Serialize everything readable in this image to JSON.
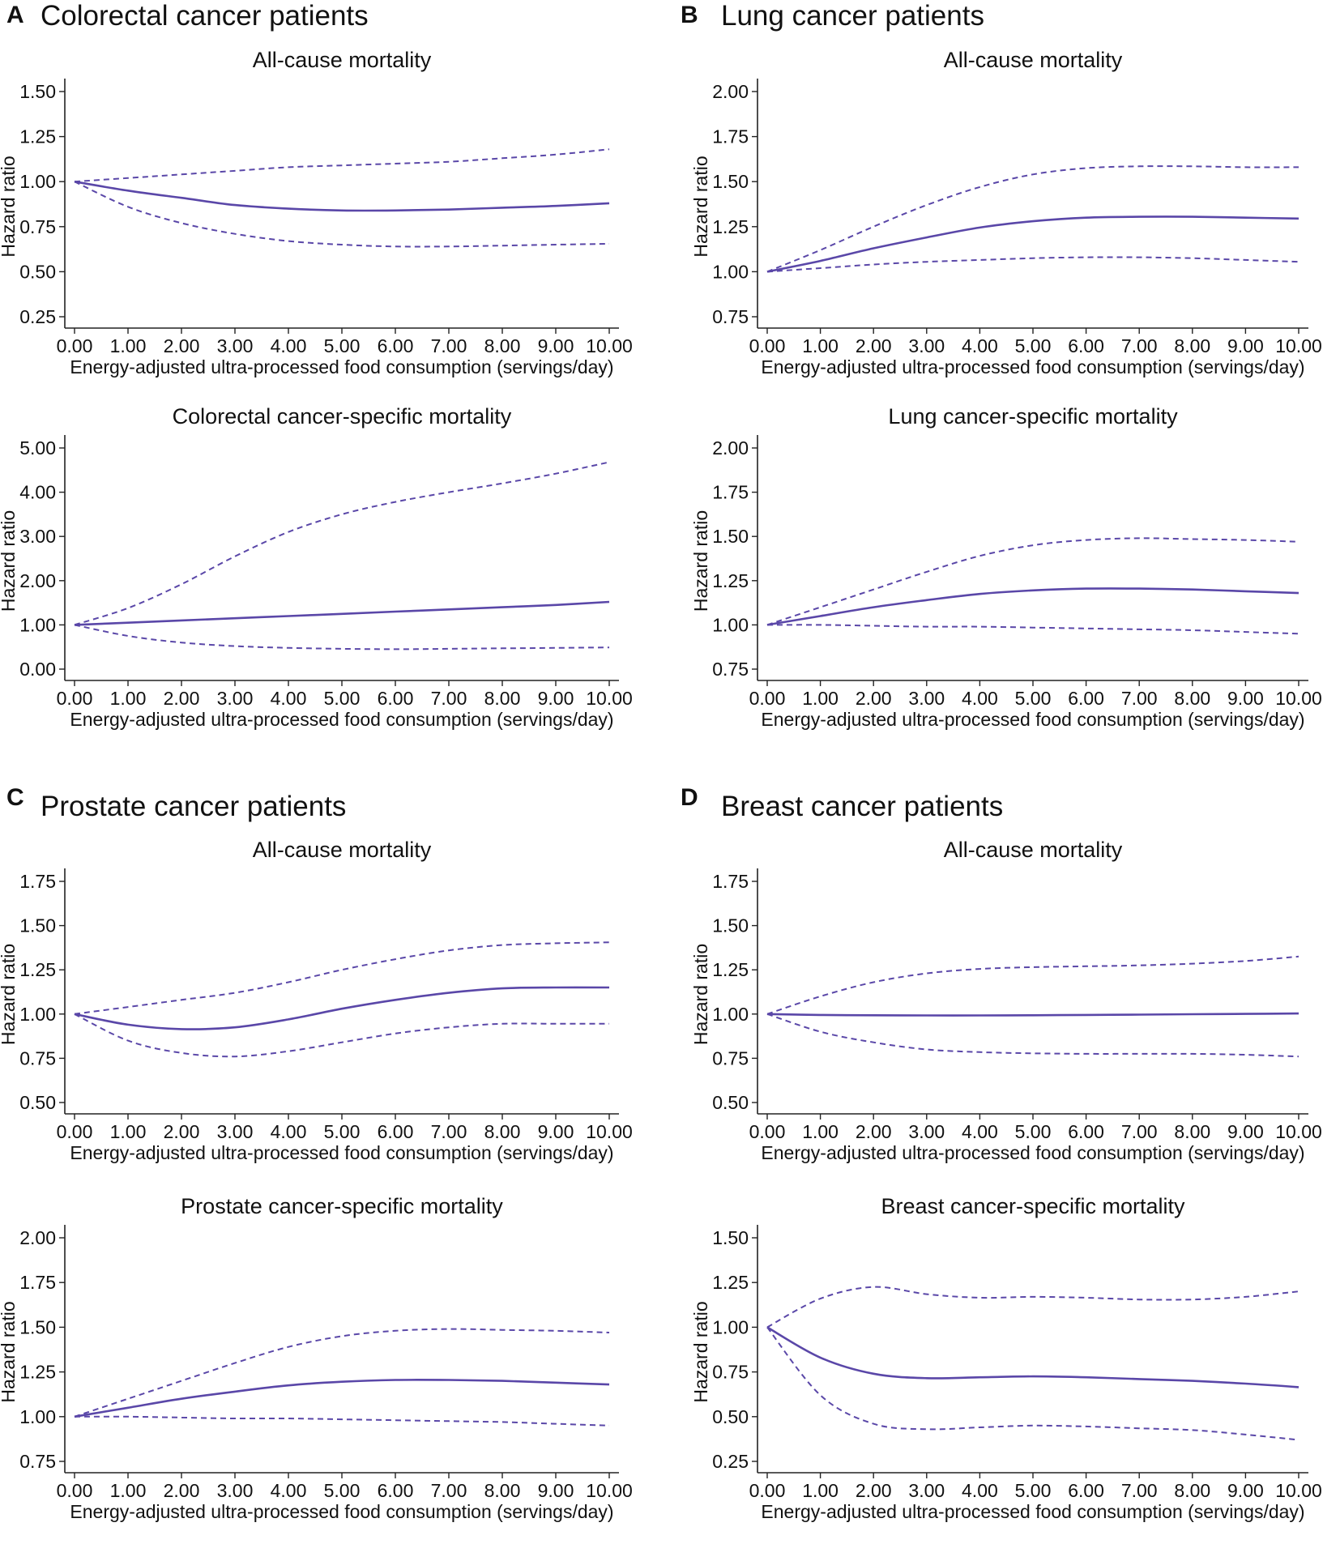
{
  "panels": [
    {
      "letter": "A",
      "title": "Colorectal cancer patients"
    },
    {
      "letter": "B",
      "title": "Lung cancer patients"
    },
    {
      "letter": "C",
      "title": "Prostate cancer patients"
    },
    {
      "letter": "D",
      "title": "Breast cancer patients"
    }
  ],
  "colors": {
    "line": "#5a47a8",
    "axis": "#222222"
  },
  "chart_data": [
    {
      "id": "A1",
      "panel": "A",
      "type": "line",
      "title": "All-cause mortality",
      "xlabel": "Energy-adjusted ultra-processed food consumption (servings/day)",
      "ylabel": "Hazard ratio",
      "xlim": [
        0,
        10
      ],
      "ylim": [
        0.25,
        1.5
      ],
      "xticks": [
        "0.00",
        "1.00",
        "2.00",
        "3.00",
        "4.00",
        "5.00",
        "6.00",
        "7.00",
        "8.00",
        "9.00",
        "10.00"
      ],
      "yticks": [
        "0.25",
        "0.50",
        "0.75",
        "1.00",
        "1.25",
        "1.50"
      ],
      "x": [
        0,
        1,
        2,
        3,
        4,
        5,
        6,
        7,
        8,
        9,
        10
      ],
      "series": [
        {
          "name": "Hazard ratio",
          "style": "solid",
          "values": [
            1.0,
            0.95,
            0.91,
            0.87,
            0.85,
            0.84,
            0.84,
            0.845,
            0.855,
            0.865,
            0.88
          ]
        },
        {
          "name": "Upper 95% CI",
          "style": "dashed",
          "values": [
            1.0,
            1.02,
            1.04,
            1.06,
            1.08,
            1.09,
            1.1,
            1.11,
            1.13,
            1.15,
            1.18
          ]
        },
        {
          "name": "Lower 95% CI",
          "style": "dashed",
          "values": [
            1.0,
            0.86,
            0.77,
            0.71,
            0.67,
            0.65,
            0.64,
            0.64,
            0.645,
            0.65,
            0.655
          ]
        }
      ]
    },
    {
      "id": "A2",
      "panel": "A",
      "type": "line",
      "title": "Colorectal cancer-specific mortality",
      "xlabel": "Energy-adjusted ultra-processed food consumption (servings/day)",
      "ylabel": "Hazard ratio",
      "xlim": [
        0,
        10
      ],
      "ylim": [
        0,
        5
      ],
      "xticks": [
        "0.00",
        "1.00",
        "2.00",
        "3.00",
        "4.00",
        "5.00",
        "6.00",
        "7.00",
        "8.00",
        "9.00",
        "10.00"
      ],
      "yticks": [
        "0.00",
        "1.00",
        "2.00",
        "3.00",
        "4.00",
        "5.00"
      ],
      "x": [
        0,
        1,
        2,
        3,
        4,
        5,
        6,
        7,
        8,
        9,
        10
      ],
      "series": [
        {
          "name": "Hazard ratio",
          "style": "solid",
          "values": [
            1.0,
            1.05,
            1.1,
            1.15,
            1.2,
            1.25,
            1.3,
            1.35,
            1.4,
            1.45,
            1.52
          ]
        },
        {
          "name": "Upper 95% CI",
          "style": "dashed",
          "values": [
            1.0,
            1.38,
            1.92,
            2.55,
            3.1,
            3.5,
            3.78,
            4.0,
            4.2,
            4.42,
            4.68
          ]
        },
        {
          "name": "Lower 95% CI",
          "style": "dashed",
          "values": [
            1.0,
            0.75,
            0.6,
            0.52,
            0.48,
            0.46,
            0.45,
            0.46,
            0.47,
            0.48,
            0.49
          ]
        }
      ]
    },
    {
      "id": "B1",
      "panel": "B",
      "type": "line",
      "title": "All-cause mortality",
      "xlabel": "Energy-adjusted ultra-processed food consumption (servings/day)",
      "ylabel": "Hazard ratio",
      "xlim": [
        0,
        10
      ],
      "ylim": [
        0.75,
        2.0
      ],
      "xticks": [
        "0.00",
        "1.00",
        "2.00",
        "3.00",
        "4.00",
        "5.00",
        "6.00",
        "7.00",
        "8.00",
        "9.00",
        "10.00"
      ],
      "yticks": [
        "0.75",
        "1.00",
        "1.25",
        "1.50",
        "1.75",
        "2.00"
      ],
      "x": [
        0,
        1,
        2,
        3,
        4,
        5,
        6,
        7,
        8,
        9,
        10
      ],
      "series": [
        {
          "name": "Hazard ratio",
          "style": "solid",
          "values": [
            1.0,
            1.06,
            1.13,
            1.19,
            1.245,
            1.28,
            1.3,
            1.305,
            1.305,
            1.3,
            1.295
          ]
        },
        {
          "name": "Upper 95% CI",
          "style": "dashed",
          "values": [
            1.0,
            1.12,
            1.25,
            1.37,
            1.47,
            1.54,
            1.575,
            1.585,
            1.585,
            1.58,
            1.58
          ]
        },
        {
          "name": "Lower 95% CI",
          "style": "dashed",
          "values": [
            1.0,
            1.02,
            1.04,
            1.055,
            1.065,
            1.075,
            1.08,
            1.08,
            1.075,
            1.065,
            1.055
          ]
        }
      ]
    },
    {
      "id": "B2",
      "panel": "B",
      "type": "line",
      "title": "Lung cancer-specific mortality",
      "xlabel": "Energy-adjusted ultra-processed food consumption (servings/day)",
      "ylabel": "Hazard ratio",
      "xlim": [
        0,
        10
      ],
      "ylim": [
        0.75,
        2.0
      ],
      "xticks": [
        "0.00",
        "1.00",
        "2.00",
        "3.00",
        "4.00",
        "5.00",
        "6.00",
        "7.00",
        "8.00",
        "9.00",
        "10.00"
      ],
      "yticks": [
        "0.75",
        "1.00",
        "1.25",
        "1.50",
        "1.75",
        "2.00"
      ],
      "x": [
        0,
        1,
        2,
        3,
        4,
        5,
        6,
        7,
        8,
        9,
        10
      ],
      "series": [
        {
          "name": "Hazard ratio",
          "style": "solid",
          "values": [
            1.0,
            1.05,
            1.1,
            1.14,
            1.175,
            1.195,
            1.205,
            1.205,
            1.2,
            1.19,
            1.18
          ]
        },
        {
          "name": "Upper 95% CI",
          "style": "dashed",
          "values": [
            1.0,
            1.1,
            1.2,
            1.3,
            1.39,
            1.45,
            1.48,
            1.49,
            1.485,
            1.48,
            1.47
          ]
        },
        {
          "name": "Lower 95% CI",
          "style": "dashed",
          "values": [
            1.0,
            1.0,
            0.995,
            0.99,
            0.99,
            0.985,
            0.98,
            0.975,
            0.97,
            0.96,
            0.95
          ]
        }
      ]
    },
    {
      "id": "C1",
      "panel": "C",
      "type": "line",
      "title": "All-cause mortality",
      "xlabel": "Energy-adjusted ultra-processed food consumption (servings/day)",
      "ylabel": "Hazard ratio",
      "xlim": [
        0,
        10
      ],
      "ylim": [
        0.5,
        1.75
      ],
      "xticks": [
        "0.00",
        "1.00",
        "2.00",
        "3.00",
        "4.00",
        "5.00",
        "6.00",
        "7.00",
        "8.00",
        "9.00",
        "10.00"
      ],
      "yticks": [
        "0.50",
        "0.75",
        "1.00",
        "1.25",
        "1.50",
        "1.75"
      ],
      "x": [
        0,
        1,
        2,
        3,
        4,
        5,
        6,
        7,
        8,
        9,
        10
      ],
      "series": [
        {
          "name": "Hazard ratio",
          "style": "solid",
          "values": [
            1.0,
            0.94,
            0.915,
            0.925,
            0.97,
            1.03,
            1.08,
            1.12,
            1.145,
            1.15,
            1.15
          ]
        },
        {
          "name": "Upper 95% CI",
          "style": "dashed",
          "values": [
            1.0,
            1.04,
            1.08,
            1.12,
            1.18,
            1.25,
            1.31,
            1.36,
            1.39,
            1.4,
            1.405
          ]
        },
        {
          "name": "Lower 95% CI",
          "style": "dashed",
          "values": [
            1.0,
            0.85,
            0.78,
            0.76,
            0.79,
            0.84,
            0.89,
            0.925,
            0.945,
            0.945,
            0.945
          ]
        }
      ]
    },
    {
      "id": "C2",
      "panel": "C",
      "type": "line",
      "title": "Prostate cancer-specific mortality",
      "xlabel": "Energy-adjusted ultra-processed food consumption (servings/day)",
      "ylabel": "Hazard ratio",
      "xlim": [
        0,
        10
      ],
      "ylim": [
        0.75,
        2.0
      ],
      "xticks": [
        "0.00",
        "1.00",
        "2.00",
        "3.00",
        "4.00",
        "5.00",
        "6.00",
        "7.00",
        "8.00",
        "9.00",
        "10.00"
      ],
      "yticks": [
        "0.75",
        "1.00",
        "1.25",
        "1.50",
        "1.75",
        "2.00"
      ],
      "x": [
        0,
        1,
        2,
        3,
        4,
        5,
        6,
        7,
        8,
        9,
        10
      ],
      "series": [
        {
          "name": "Hazard ratio",
          "style": "solid",
          "values": [
            1.0,
            1.05,
            1.1,
            1.14,
            1.175,
            1.195,
            1.205,
            1.205,
            1.2,
            1.19,
            1.18
          ]
        },
        {
          "name": "Upper 95% CI",
          "style": "dashed",
          "values": [
            1.0,
            1.1,
            1.2,
            1.3,
            1.39,
            1.45,
            1.48,
            1.49,
            1.485,
            1.48,
            1.47
          ]
        },
        {
          "name": "Lower 95% CI",
          "style": "dashed",
          "values": [
            1.0,
            1.0,
            0.995,
            0.99,
            0.99,
            0.985,
            0.98,
            0.975,
            0.97,
            0.96,
            0.95
          ]
        }
      ]
    },
    {
      "id": "D1",
      "panel": "D",
      "type": "line",
      "title": "All-cause mortality",
      "xlabel": "Energy-adjusted ultra-processed food consumption (servings/day)",
      "ylabel": "Hazard ratio",
      "xlim": [
        0,
        10
      ],
      "ylim": [
        0.5,
        1.75
      ],
      "xticks": [
        "0.00",
        "1.00",
        "2.00",
        "3.00",
        "4.00",
        "5.00",
        "6.00",
        "7.00",
        "8.00",
        "9.00",
        "10.00"
      ],
      "yticks": [
        "0.50",
        "0.75",
        "1.00",
        "1.25",
        "1.50",
        "1.75"
      ],
      "x": [
        0,
        1,
        2,
        3,
        4,
        5,
        6,
        7,
        8,
        9,
        10
      ],
      "series": [
        {
          "name": "Hazard ratio",
          "style": "solid",
          "values": [
            1.0,
            0.995,
            0.993,
            0.992,
            0.992,
            0.993,
            0.995,
            0.997,
            0.999,
            1.001,
            1.003
          ]
        },
        {
          "name": "Upper 95% CI",
          "style": "dashed",
          "values": [
            1.0,
            1.1,
            1.18,
            1.23,
            1.255,
            1.265,
            1.27,
            1.275,
            1.285,
            1.3,
            1.325
          ]
        },
        {
          "name": "Lower 95% CI",
          "style": "dashed",
          "values": [
            1.0,
            0.9,
            0.84,
            0.8,
            0.785,
            0.778,
            0.775,
            0.775,
            0.775,
            0.77,
            0.76
          ]
        }
      ]
    },
    {
      "id": "D2",
      "panel": "D",
      "type": "line",
      "title": "Breast cancer-specific mortality",
      "xlabel": "Energy-adjusted ultra-processed food consumption (servings/day)",
      "ylabel": "Hazard ratio",
      "xlim": [
        0,
        10
      ],
      "ylim": [
        0.25,
        1.5
      ],
      "xticks": [
        "0.00",
        "1.00",
        "2.00",
        "3.00",
        "4.00",
        "5.00",
        "6.00",
        "7.00",
        "8.00",
        "9.00",
        "10.00"
      ],
      "yticks": [
        "0.25",
        "0.50",
        "0.75",
        "1.00",
        "1.25",
        "1.50"
      ],
      "x": [
        0,
        1,
        2,
        3,
        4,
        5,
        6,
        7,
        8,
        9,
        10
      ],
      "series": [
        {
          "name": "Hazard ratio",
          "style": "solid",
          "values": [
            1.0,
            0.83,
            0.74,
            0.715,
            0.72,
            0.725,
            0.72,
            0.71,
            0.7,
            0.685,
            0.665
          ]
        },
        {
          "name": "Upper 95% CI",
          "style": "dashed",
          "values": [
            1.0,
            1.16,
            1.225,
            1.185,
            1.165,
            1.17,
            1.165,
            1.155,
            1.155,
            1.17,
            1.2
          ]
        },
        {
          "name": "Lower 95% CI",
          "style": "dashed",
          "values": [
            1.0,
            0.62,
            0.46,
            0.43,
            0.44,
            0.45,
            0.445,
            0.435,
            0.425,
            0.4,
            0.37
          ]
        }
      ]
    }
  ]
}
